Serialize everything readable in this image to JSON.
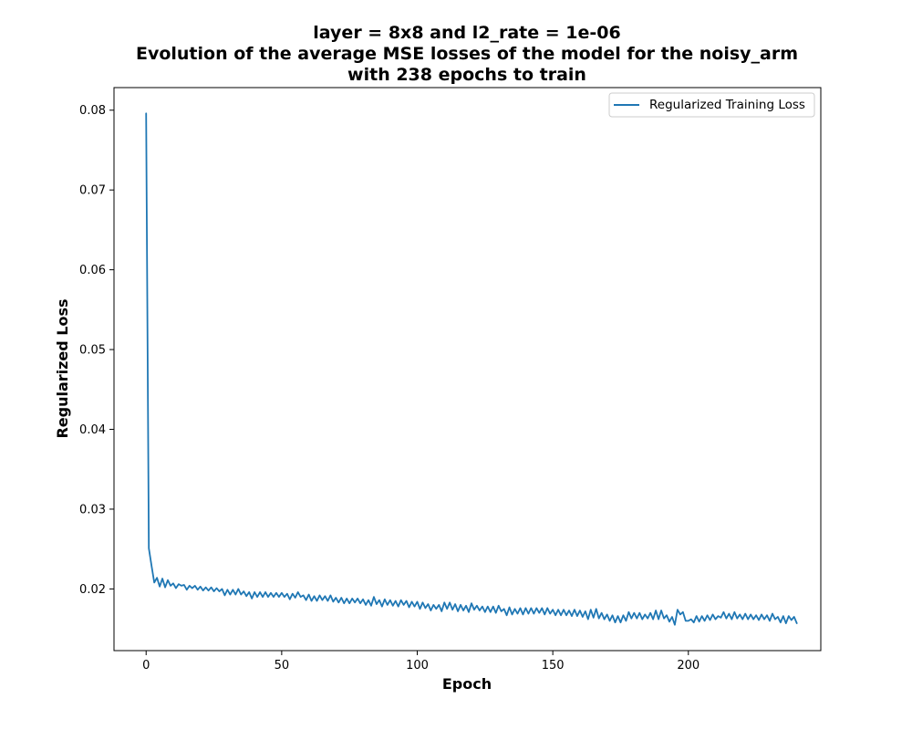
{
  "colors": {
    "series": "#1f77b4",
    "axes": "#000000",
    "legend_border": "#cccccc"
  },
  "chart_data": {
    "type": "line",
    "title": [
      "layer = 8x8 and l2_rate = 1e-06",
      "Evolution of the average MSE losses of the model for the noisy_arm",
      "with 238 epochs to train"
    ],
    "xlabel": "Epoch",
    "ylabel": "Regularized Loss",
    "xlim": [
      -11.85,
      248.85
    ],
    "ylim": [
      0.01227,
      0.08283
    ],
    "x_ticks": [
      0,
      50,
      100,
      150,
      200
    ],
    "y_ticks": [
      0.02,
      0.03,
      0.04,
      0.05,
      0.06,
      0.07,
      0.08
    ],
    "y_tick_labels": [
      "0.02",
      "0.03",
      "0.04",
      "0.05",
      "0.06",
      "0.07",
      "0.08"
    ],
    "grid": false,
    "legend_position": "top-right",
    "series": [
      {
        "name": "Regularized Training Loss",
        "x_start": 0,
        "x_step": 1,
        "values": [
          0.0796,
          0.0251,
          0.0229,
          0.0208,
          0.0214,
          0.0203,
          0.0213,
          0.0202,
          0.0211,
          0.0204,
          0.0207,
          0.0201,
          0.0206,
          0.0204,
          0.0205,
          0.0199,
          0.0204,
          0.0201,
          0.0204,
          0.0199,
          0.0203,
          0.0198,
          0.0202,
          0.0198,
          0.0202,
          0.0197,
          0.0201,
          0.0197,
          0.02,
          0.0192,
          0.0199,
          0.0193,
          0.0199,
          0.0193,
          0.02,
          0.0193,
          0.0197,
          0.0191,
          0.0196,
          0.0188,
          0.0196,
          0.019,
          0.0196,
          0.019,
          0.0196,
          0.019,
          0.0195,
          0.019,
          0.0195,
          0.019,
          0.0195,
          0.019,
          0.0194,
          0.0187,
          0.0194,
          0.0189,
          0.0196,
          0.019,
          0.0192,
          0.0186,
          0.0193,
          0.0185,
          0.0191,
          0.0185,
          0.0192,
          0.0186,
          0.0191,
          0.0185,
          0.0192,
          0.0184,
          0.0189,
          0.0183,
          0.0189,
          0.0182,
          0.0188,
          0.0182,
          0.0188,
          0.0183,
          0.0188,
          0.0182,
          0.0187,
          0.018,
          0.0186,
          0.0179,
          0.019,
          0.0181,
          0.0186,
          0.0178,
          0.0187,
          0.018,
          0.0186,
          0.0179,
          0.0185,
          0.0178,
          0.0186,
          0.018,
          0.0185,
          0.0177,
          0.0184,
          0.0178,
          0.0184,
          0.0175,
          0.0183,
          0.0176,
          0.0181,
          0.0173,
          0.018,
          0.0175,
          0.018,
          0.0172,
          0.0183,
          0.0175,
          0.0183,
          0.0174,
          0.0181,
          0.0172,
          0.018,
          0.0173,
          0.0179,
          0.0171,
          0.0182,
          0.0174,
          0.0179,
          0.0173,
          0.0178,
          0.0171,
          0.0178,
          0.0171,
          0.0178,
          0.017,
          0.0179,
          0.0172,
          0.0175,
          0.0167,
          0.0177,
          0.0168,
          0.0175,
          0.0169,
          0.0176,
          0.0168,
          0.0176,
          0.0169,
          0.0176,
          0.0169,
          0.0176,
          0.017,
          0.0176,
          0.0168,
          0.0176,
          0.0169,
          0.0174,
          0.0167,
          0.0174,
          0.0167,
          0.0174,
          0.0167,
          0.0173,
          0.0166,
          0.0174,
          0.0166,
          0.0173,
          0.0165,
          0.0172,
          0.0162,
          0.0174,
          0.0164,
          0.0175,
          0.0163,
          0.017,
          0.0162,
          0.0168,
          0.016,
          0.0167,
          0.0158,
          0.0166,
          0.0158,
          0.0167,
          0.016,
          0.0171,
          0.0163,
          0.017,
          0.0163,
          0.017,
          0.0162,
          0.0168,
          0.0163,
          0.017,
          0.0162,
          0.0173,
          0.0162,
          0.0173,
          0.0163,
          0.0167,
          0.0159,
          0.0165,
          0.0155,
          0.0174,
          0.0168,
          0.0171,
          0.016,
          0.016,
          0.0162,
          0.0158,
          0.0166,
          0.0159,
          0.0166,
          0.016,
          0.0167,
          0.0161,
          0.0168,
          0.0162,
          0.0166,
          0.0164,
          0.0171,
          0.0163,
          0.0169,
          0.0162,
          0.0171,
          0.0163,
          0.0168,
          0.0162,
          0.0169,
          0.0162,
          0.0168,
          0.0162,
          0.0167,
          0.0161,
          0.0168,
          0.0162,
          0.0167,
          0.016,
          0.0169,
          0.0162,
          0.0165,
          0.0158,
          0.0166,
          0.0157,
          0.0166,
          0.0161,
          0.0165,
          0.0157
        ]
      }
    ]
  }
}
